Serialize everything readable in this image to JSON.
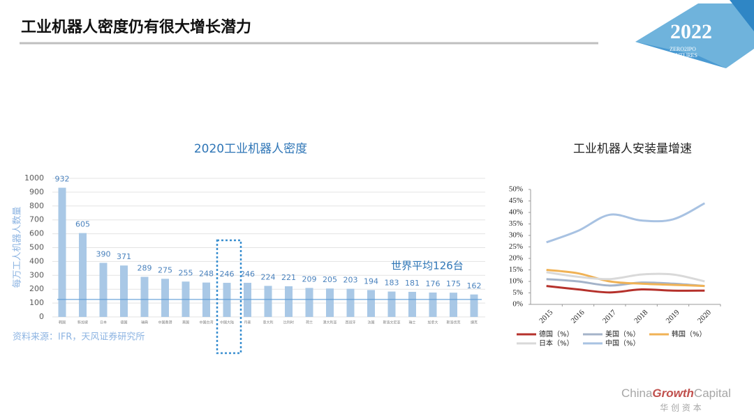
{
  "header": {
    "title": "工业机器人密度仍有很大增长潜力",
    "logo_year": "2022",
    "logo_text": [
      "ZERO2IPO",
      "VENTURES"
    ]
  },
  "footer": {
    "brand_1": "China",
    "brand_2": "Growth",
    "brand_3": "Capital",
    "brand_cn": "华 创 资 本"
  },
  "chart_data": [
    {
      "type": "bar",
      "title": "2020工业机器人密度",
      "ylabel": "每万工人机器人数量",
      "categories": [
        "韩国",
        "新加坡",
        "日本",
        "德国",
        "瑞典",
        "中国香港",
        "美国",
        "中国台湾",
        "中国大陆",
        "丹麦",
        "意大利",
        "比利时",
        "荷兰",
        "澳大利亚",
        "西班牙",
        "法国",
        "斯洛文尼亚",
        "瑞士",
        "加拿大",
        "斯洛伐克",
        "捷克"
      ],
      "values": [
        932,
        605,
        390,
        371,
        289,
        275,
        255,
        248,
        246,
        246,
        224,
        221,
        209,
        205,
        203,
        194,
        183,
        181,
        176,
        175,
        162
      ],
      "color": "#a9c8e6",
      "label_color": "#4a82bd",
      "ylim": [
        0,
        1000
      ],
      "yticks": [
        0,
        100,
        200,
        300,
        400,
        500,
        600,
        700,
        800,
        900,
        1000
      ],
      "grid": true,
      "average": 126,
      "average_label": "世界平均126台",
      "highlight_index": 8,
      "source": "资料来源：IFR，天风证券研究所"
    },
    {
      "type": "line",
      "title": "工业机器人安装量增速",
      "x": [
        2015,
        2016,
        2017,
        2018,
        2019,
        2020
      ],
      "series": [
        {
          "name": "德国（%）",
          "color": "#b5312b",
          "values": [
            8,
            6.5,
            5.2,
            6.5,
            6,
            6
          ]
        },
        {
          "name": "美国（%）",
          "color": "#a4b3c9",
          "values": [
            11,
            10,
            8.2,
            9.5,
            9,
            8
          ]
        },
        {
          "name": "韩国（%）",
          "color": "#f0b255",
          "values": [
            15,
            13.5,
            10,
            9,
            8.5,
            8
          ]
        },
        {
          "name": "日本（%）",
          "color": "#d9d9d9",
          "values": [
            14,
            12,
            11,
            13,
            13,
            10
          ]
        },
        {
          "name": "中国（%）",
          "color": "#a8c2e2",
          "values": [
            27,
            32,
            39,
            36.5,
            37,
            44
          ]
        }
      ],
      "ylim": [
        0,
        50
      ],
      "yticks": [
        {
          "value": 0,
          "label": "0%"
        },
        {
          "value": 5,
          "label": "5%"
        },
        {
          "value": 10,
          "label": "10%"
        },
        {
          "value": 15,
          "label": "15%"
        },
        {
          "value": 20,
          "label": "20%"
        },
        {
          "value": 25,
          "label": "25%"
        },
        {
          "value": 30,
          "label": "30%"
        },
        {
          "value": 35,
          "label": "35%"
        },
        {
          "value": 40,
          "label": "40%"
        },
        {
          "value": 45,
          "label": "45%"
        },
        {
          "value": 50,
          "label": "50%"
        }
      ]
    }
  ]
}
